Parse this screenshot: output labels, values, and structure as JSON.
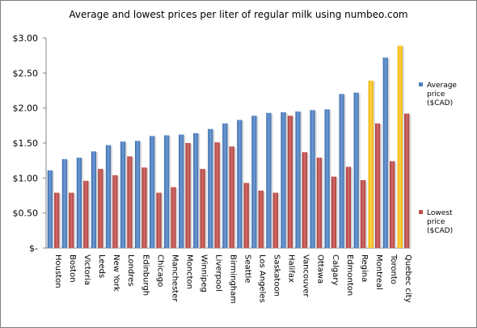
{
  "chart_data": {
    "type": "bar",
    "title": "Average and lowest prices per liter of regular milk using numbeo.com",
    "xlabel": "",
    "ylabel": "",
    "ylim": [
      0,
      3.0
    ],
    "yticks": [
      "$-",
      "$0.50",
      "$1.00",
      "$1.50",
      "$2.00",
      "$2.50",
      "$3.00"
    ],
    "grid": false,
    "legend_position": "right",
    "categories": [
      "Houston",
      "Boston",
      "Victoria",
      "Leeds",
      "New York",
      "Londres",
      "Edinburgh",
      "Chicago",
      "Manchester",
      "Moncton",
      "Winnipeg",
      "Liverpool",
      "Birmingham",
      "Seattle",
      "Los Angeles",
      "Saskatoon",
      "Halifax",
      "Vancouver",
      "Ottawa",
      "Calgary",
      "Edmonton",
      "Regina",
      "Montreal",
      "Toronto",
      "Quebec city"
    ],
    "highlight_categories": [
      "Montreal",
      "Quebec city"
    ],
    "series": [
      {
        "name": "Average price ($CAD)",
        "color": "#4f81bd",
        "highlight_color": "#ffc000",
        "values": [
          1.11,
          1.27,
          1.29,
          1.38,
          1.47,
          1.52,
          1.53,
          1.6,
          1.61,
          1.62,
          1.64,
          1.7,
          1.78,
          1.83,
          1.89,
          1.93,
          1.94,
          1.95,
          1.97,
          1.98,
          2.2,
          2.22,
          2.39,
          2.72,
          2.89
        ]
      },
      {
        "name": "Lowest price ($CAD)",
        "color": "#c0504d",
        "values": [
          0.79,
          0.79,
          0.96,
          1.13,
          1.04,
          1.31,
          1.15,
          0.79,
          0.87,
          1.5,
          1.13,
          1.51,
          1.45,
          0.93,
          0.82,
          0.79,
          1.89,
          1.37,
          1.29,
          1.02,
          1.16,
          0.97,
          1.78,
          1.24,
          1.92
        ]
      }
    ]
  }
}
